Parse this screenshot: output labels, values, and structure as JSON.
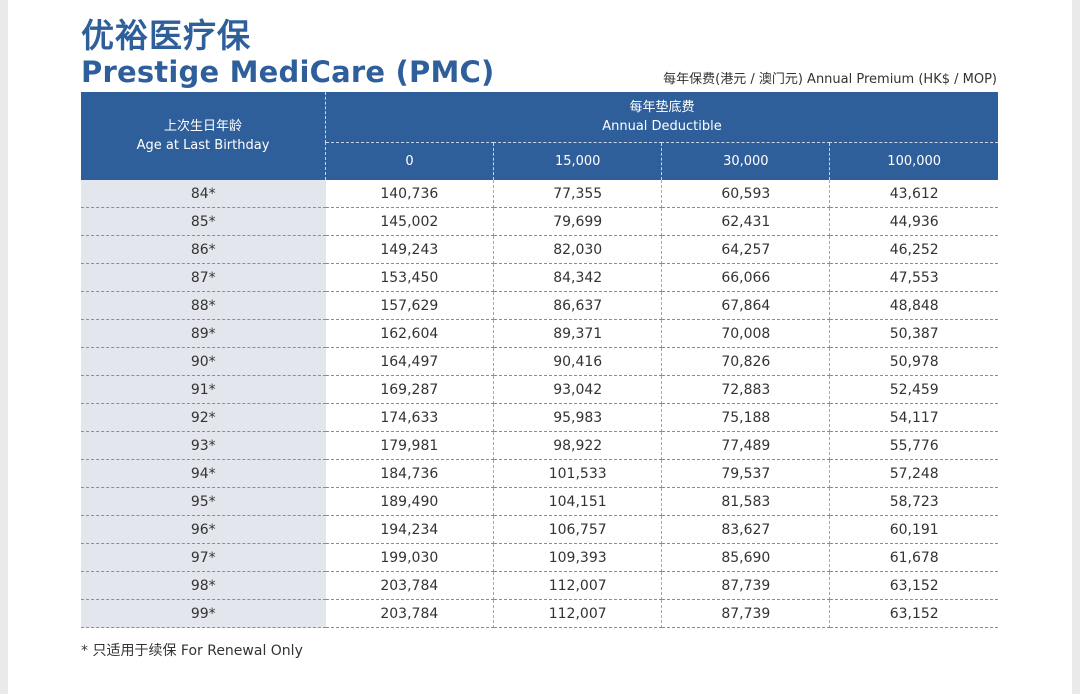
{
  "title_cn": "优裕医疗保",
  "title_en": "Prestige MediCare (PMC)",
  "premium_note": "每年保费(港元 / 澳门元) Annual Premium (HK$ / MOP)",
  "table": {
    "age_header_cn": "上次生日年龄",
    "age_header_en": "Age at Last Birthday",
    "deductible_header_cn": "每年垫底费",
    "deductible_header_en": "Annual Deductible",
    "columns": [
      "0",
      "15,000",
      "30,000",
      "100,000"
    ],
    "rows": [
      {
        "age": "84*",
        "values": [
          "140,736",
          "77,355",
          "60,593",
          "43,612"
        ]
      },
      {
        "age": "85*",
        "values": [
          "145,002",
          "79,699",
          "62,431",
          "44,936"
        ]
      },
      {
        "age": "86*",
        "values": [
          "149,243",
          "82,030",
          "64,257",
          "46,252"
        ]
      },
      {
        "age": "87*",
        "values": [
          "153,450",
          "84,342",
          "66,066",
          "47,553"
        ]
      },
      {
        "age": "88*",
        "values": [
          "157,629",
          "86,637",
          "67,864",
          "48,848"
        ]
      },
      {
        "age": "89*",
        "values": [
          "162,604",
          "89,371",
          "70,008",
          "50,387"
        ]
      },
      {
        "age": "90*",
        "values": [
          "164,497",
          "90,416",
          "70,826",
          "50,978"
        ]
      },
      {
        "age": "91*",
        "values": [
          "169,287",
          "93,042",
          "72,883",
          "52,459"
        ]
      },
      {
        "age": "92*",
        "values": [
          "174,633",
          "95,983",
          "75,188",
          "54,117"
        ]
      },
      {
        "age": "93*",
        "values": [
          "179,981",
          "98,922",
          "77,489",
          "55,776"
        ]
      },
      {
        "age": "94*",
        "values": [
          "184,736",
          "101,533",
          "79,537",
          "57,248"
        ]
      },
      {
        "age": "95*",
        "values": [
          "189,490",
          "104,151",
          "81,583",
          "58,723"
        ]
      },
      {
        "age": "96*",
        "values": [
          "194,234",
          "106,757",
          "83,627",
          "60,191"
        ]
      },
      {
        "age": "97*",
        "values": [
          "199,030",
          "109,393",
          "85,690",
          "61,678"
        ]
      },
      {
        "age": "98*",
        "values": [
          "203,784",
          "112,007",
          "87,739",
          "63,152"
        ]
      },
      {
        "age": "99*",
        "values": [
          "203,784",
          "112,007",
          "87,739",
          "63,152"
        ]
      }
    ]
  },
  "footnote": "* 只适用于续保 For Renewal Only"
}
